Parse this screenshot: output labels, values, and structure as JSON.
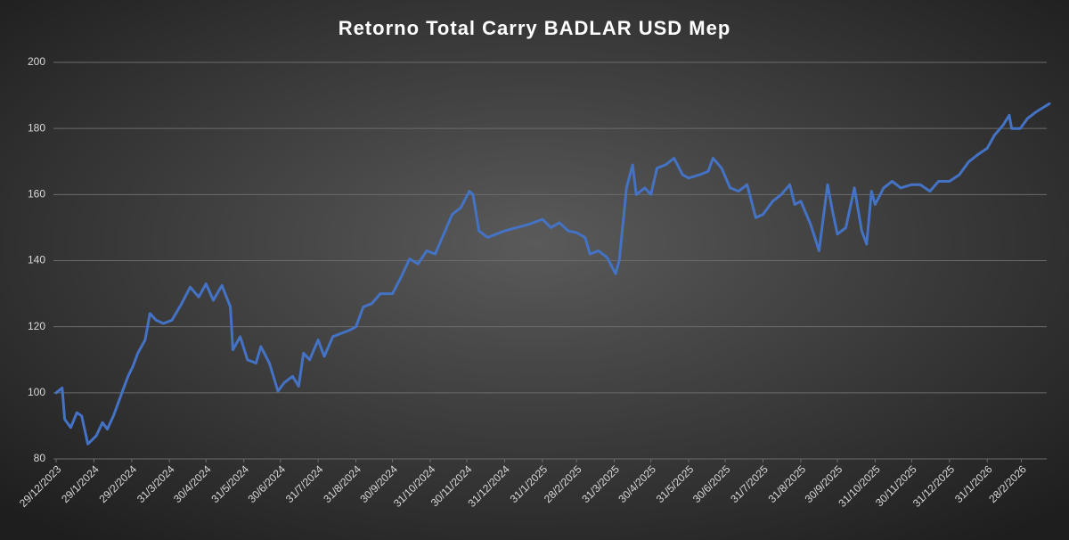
{
  "chart_data": {
    "type": "line",
    "title": "Retorno Total Carry BADLAR USD Mep",
    "color": "#4472c4",
    "grid": true,
    "x": [
      "2023-12-29",
      "2024-01-03",
      "2024-01-05",
      "2024-01-10",
      "2024-01-15",
      "2024-01-19",
      "2024-01-24",
      "2024-01-31",
      "2024-02-05",
      "2024-02-09",
      "2024-02-14",
      "2024-02-20",
      "2024-02-26",
      "2024-03-01",
      "2024-03-05",
      "2024-03-11",
      "2024-03-15",
      "2024-03-20",
      "2024-03-26",
      "2024-04-02",
      "2024-04-10",
      "2024-04-17",
      "2024-04-24",
      "2024-04-30",
      "2024-05-06",
      "2024-05-13",
      "2024-05-20",
      "2024-05-22",
      "2024-05-28",
      "2024-06-03",
      "2024-06-10",
      "2024-06-14",
      "2024-06-21",
      "2024-06-28",
      "2024-07-03",
      "2024-07-10",
      "2024-07-15",
      "2024-07-19",
      "2024-07-24",
      "2024-07-31",
      "2024-08-05",
      "2024-08-12",
      "2024-08-19",
      "2024-08-26",
      "2024-08-31",
      "2024-09-06",
      "2024-09-13",
      "2024-09-20",
      "2024-09-30",
      "2024-10-07",
      "2024-10-14",
      "2024-10-21",
      "2024-10-28",
      "2024-11-04",
      "2024-11-11",
      "2024-11-18",
      "2024-11-25",
      "2024-12-02",
      "2024-12-05",
      "2024-12-10",
      "2024-12-17",
      "2024-12-24",
      "2024-12-31",
      "2025-01-10",
      "2025-01-20",
      "2025-01-31",
      "2025-02-07",
      "2025-02-14",
      "2025-02-21",
      "2025-02-28",
      "2025-03-07",
      "2025-03-11",
      "2025-03-18",
      "2025-03-25",
      "2025-04-01",
      "2025-04-04",
      "2025-04-10",
      "2025-04-15",
      "2025-04-18",
      "2025-04-25",
      "2025-04-30",
      "2025-05-05",
      "2025-05-12",
      "2025-05-19",
      "2025-05-26",
      "2025-05-31",
      "2025-06-09",
      "2025-06-16",
      "2025-06-20",
      "2025-06-27",
      "2025-07-04",
      "2025-07-11",
      "2025-07-18",
      "2025-07-25",
      "2025-07-31",
      "2025-08-08",
      "2025-08-15",
      "2025-08-22",
      "2025-08-26",
      "2025-08-31",
      "2025-09-08",
      "2025-09-15",
      "2025-09-22",
      "2025-09-26",
      "2025-09-30",
      "2025-10-07",
      "2025-10-14",
      "2025-10-20",
      "2025-10-24",
      "2025-10-28",
      "2025-10-31",
      "2025-11-07",
      "2025-11-14",
      "2025-11-21",
      "2025-11-30",
      "2025-12-07",
      "2025-12-15",
      "2025-12-22",
      "2025-12-31",
      "2026-01-08",
      "2026-01-16",
      "2026-01-23",
      "2026-01-31",
      "2026-02-06",
      "2026-02-13",
      "2026-02-18",
      "2026-02-20",
      "2026-02-27",
      "2026-03-05",
      "2026-03-12",
      "2026-03-23"
    ],
    "values": [
      100,
      101.5,
      92,
      89.5,
      94,
      93,
      84.5,
      87,
      91,
      89,
      93,
      99,
      105,
      108,
      112,
      116,
      124,
      122,
      121,
      122,
      127,
      132,
      129,
      133,
      128,
      132.5,
      126,
      113,
      117,
      110,
      109,
      114,
      109,
      100.5,
      103,
      105,
      102,
      112,
      110,
      116,
      111,
      117,
      118,
      119,
      120,
      126,
      127,
      130,
      130,
      135,
      140.5,
      139,
      143,
      142,
      148,
      154,
      156,
      161,
      160,
      149,
      147,
      148,
      149,
      150,
      151,
      152.5,
      150,
      151.5,
      149,
      148.5,
      147,
      142,
      143,
      141,
      136,
      140,
      162,
      169,
      160,
      162,
      160,
      168,
      169,
      171,
      166,
      165,
      166,
      167,
      171,
      168,
      162,
      161,
      163,
      153,
      154,
      158,
      160,
      163,
      157,
      158,
      151,
      143,
      163,
      155,
      148,
      150,
      162,
      149,
      145,
      161,
      157,
      162,
      164,
      162,
      163,
      163,
      161,
      164,
      164,
      166,
      170,
      172,
      174,
      178,
      181,
      184,
      180,
      180,
      183,
      185,
      187.5
    ],
    "xlim": [
      "2023-12-29",
      "2026-03-23"
    ],
    "xticks": [
      {
        "value": "2023-12-29",
        "label": "29/12/2023"
      },
      {
        "value": "2024-01-29",
        "label": "29/1/2024"
      },
      {
        "value": "2024-02-29",
        "label": "29/2/2024"
      },
      {
        "value": "2024-03-31",
        "label": "31/3/2024"
      },
      {
        "value": "2024-04-30",
        "label": "30/4/2024"
      },
      {
        "value": "2024-05-31",
        "label": "31/5/2024"
      },
      {
        "value": "2024-06-30",
        "label": "30/6/2024"
      },
      {
        "value": "2024-07-31",
        "label": "31/7/2024"
      },
      {
        "value": "2024-08-31",
        "label": "31/8/2024"
      },
      {
        "value": "2024-09-30",
        "label": "30/9/2024"
      },
      {
        "value": "2024-10-31",
        "label": "31/10/2024"
      },
      {
        "value": "2024-11-30",
        "label": "30/11/2024"
      },
      {
        "value": "2024-12-31",
        "label": "31/12/2024"
      },
      {
        "value": "2025-01-31",
        "label": "31/1/2025"
      },
      {
        "value": "2025-02-28",
        "label": "28/2/2025"
      },
      {
        "value": "2025-03-31",
        "label": "31/3/2025"
      },
      {
        "value": "2025-04-30",
        "label": "30/4/2025"
      },
      {
        "value": "2025-05-31",
        "label": "31/5/2025"
      },
      {
        "value": "2025-06-30",
        "label": "30/6/2025"
      },
      {
        "value": "2025-07-31",
        "label": "31/7/2025"
      },
      {
        "value": "2025-08-31",
        "label": "31/8/2025"
      },
      {
        "value": "2025-09-30",
        "label": "30/9/2025"
      },
      {
        "value": "2025-10-31",
        "label": "31/10/2025"
      },
      {
        "value": "2025-11-30",
        "label": "30/11/2025"
      },
      {
        "value": "2025-12-31",
        "label": "31/12/2025"
      },
      {
        "value": "2026-01-31",
        "label": "31/1/2026"
      },
      {
        "value": "2026-02-28",
        "label": "28/2/2026"
      }
    ],
    "ylim": [
      80,
      200
    ],
    "yticks": [
      80,
      100,
      120,
      140,
      160,
      180,
      200
    ]
  }
}
